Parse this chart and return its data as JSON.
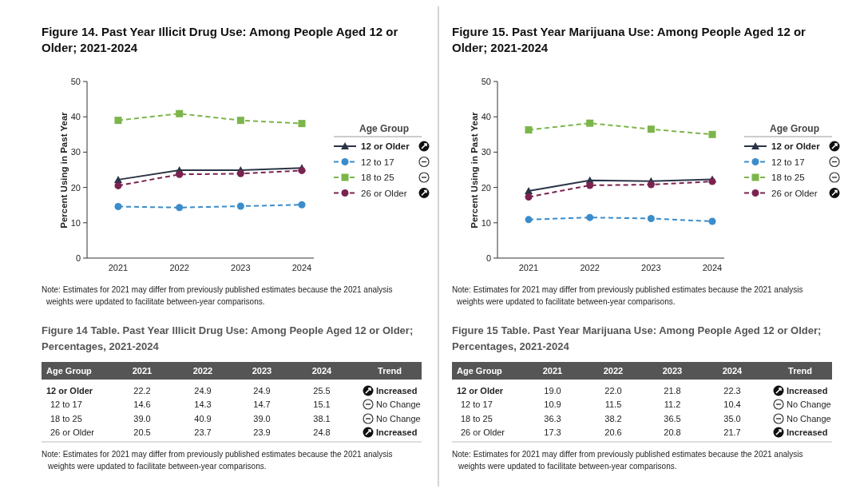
{
  "chart_data": [
    {
      "type": "line",
      "title": "Figure 14. Past Year Illicit Drug Use: Among People Aged 12 or Older; 2021-2024",
      "ylabel": "Percent Using in Past Year",
      "legend_title": "Age Group",
      "legend": "right",
      "grid": false,
      "categories": [
        "2021",
        "2022",
        "2023",
        "2024"
      ],
      "ylim": [
        0,
        50
      ],
      "yticks": [
        0,
        10,
        20,
        30,
        40,
        50
      ],
      "series": [
        {
          "name": "12 or Older",
          "color": "#2b3547",
          "marker": "triangle",
          "line_style": "solid",
          "values": [
            22.2,
            24.9,
            24.9,
            25.5
          ],
          "value_labels": [
            "22.2",
            "24.9",
            "24.9",
            "25.5"
          ]
        },
        {
          "name": "12 to 17",
          "color": "#3b8ccb",
          "marker": "circle",
          "line_style": "dashed",
          "values": [
            14.6,
            14.3,
            14.7,
            15.1
          ],
          "value_labels": [
            "14.6",
            "14.3",
            "14.7",
            "15.1"
          ]
        },
        {
          "name": "18 to 25",
          "color": "#7cb54a",
          "marker": "square",
          "line_style": "dashed",
          "values": [
            39.0,
            40.9,
            39.0,
            38.1
          ],
          "value_labels": [
            "39.0",
            "40.9",
            "39.0",
            "38.1"
          ]
        },
        {
          "name": "26 or Older",
          "color": "#7a2350",
          "marker": "circle",
          "line_style": "dashed",
          "values": [
            20.5,
            23.7,
            23.9,
            24.8
          ],
          "value_labels": [
            "20.5",
            "23.7",
            "23.9",
            "24.8"
          ]
        }
      ],
      "annotations": [
        "Note: Estimates for 2021 may differ from previously published estimates because the 2021 analysis weights were updated to facilitate between-year comparisons.",
        "Figure 14 Table. Past Year Illicit Drug Use: Among People Aged 12 or Older; Percentages, 2021-2024",
        "Trend",
        "Increased",
        "No Change",
        "No Change",
        "Increased",
        "Note: Estimates for 2021 may differ from previously published estimates because the 2021 analysis weights were updated to facilitate between-year comparisons."
      ]
    },
    {
      "type": "line",
      "title": "Figure 15. Past Year Marijuana Use: Among People Aged 12 or Older; 2021-2024",
      "ylabel": "Percent Using in Past Year",
      "legend_title": "Age Group",
      "legend": "right",
      "grid": false,
      "categories": [
        "2021",
        "2022",
        "2023",
        "2024"
      ],
      "ylim": [
        0,
        50
      ],
      "yticks": [
        0,
        10,
        20,
        30,
        40,
        50
      ],
      "series": [
        {
          "name": "12 or Older",
          "color": "#2b3547",
          "marker": "triangle",
          "line_style": "solid",
          "values": [
            19.0,
            22.0,
            21.8,
            22.3
          ],
          "value_labels": [
            "19.0",
            "22.0",
            "21.8",
            "22.3"
          ]
        },
        {
          "name": "12 to 17",
          "color": "#3b8ccb",
          "marker": "circle",
          "line_style": "dashed",
          "values": [
            10.9,
            11.5,
            11.2,
            10.4
          ],
          "value_labels": [
            "10.9",
            "11.5",
            "11.2",
            "10.4"
          ]
        },
        {
          "name": "18 to 25",
          "color": "#7cb54a",
          "marker": "square",
          "line_style": "dashed",
          "values": [
            36.3,
            38.2,
            36.5,
            35.0
          ],
          "value_labels": [
            "36.3",
            "38.2",
            "36.5",
            "35.0"
          ]
        },
        {
          "name": "26 or Older",
          "color": "#7a2350",
          "marker": "circle",
          "line_style": "dashed",
          "values": [
            17.3,
            20.6,
            20.8,
            21.7
          ],
          "value_labels": [
            "17.3",
            "20.6",
            "20.8",
            "21.7"
          ]
        }
      ],
      "annotations": [
        "Note: Estimates for 2021 may differ from previously published estimates because the 2021 analysis weights were updated to facilitate between-year comparisons.",
        "Figure 15 Table. Past Year Marijuana Use: Among People Aged 12 or Older; Percentages, 2021-2024",
        "Trend",
        "Increased",
        "No Change",
        "No Change",
        "Increased",
        "Note: Estimates for 2021 may differ from previously published estimates because the 2021 analysis weights were updated to facilitate between-year comparisons."
      ]
    }
  ]
}
